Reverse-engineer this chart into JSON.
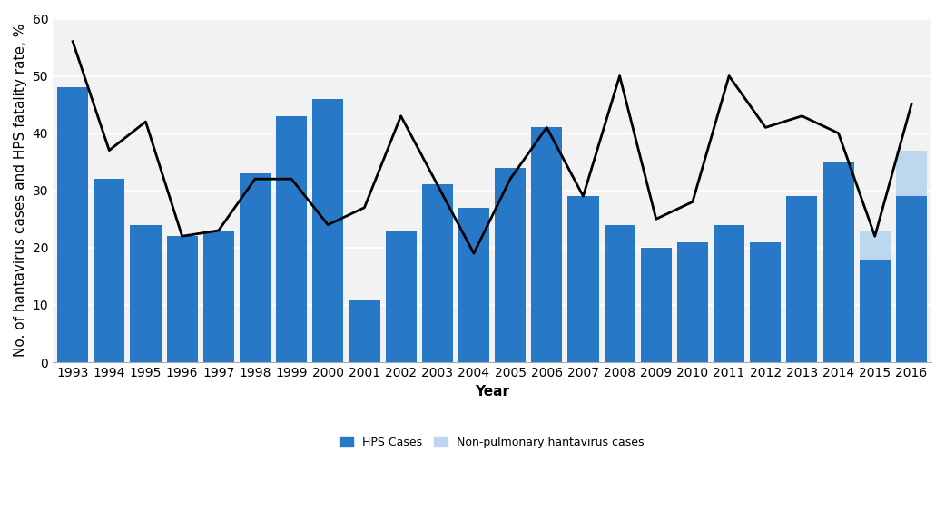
{
  "years": [
    1993,
    1994,
    1995,
    1996,
    1997,
    1998,
    1999,
    2000,
    2001,
    2002,
    2003,
    2004,
    2005,
    2006,
    2007,
    2008,
    2009,
    2010,
    2011,
    2012,
    2013,
    2014,
    2015,
    2016
  ],
  "hps_cases": [
    48,
    32,
    24,
    22,
    23,
    33,
    43,
    46,
    11,
    23,
    31,
    27,
    34,
    41,
    29,
    24,
    20,
    21,
    24,
    21,
    29,
    35,
    18,
    29
  ],
  "non_pulmonary": [
    0,
    0,
    0,
    0,
    0,
    0,
    0,
    0,
    0,
    0,
    0,
    0,
    0,
    0,
    0,
    0,
    0,
    0,
    0,
    0,
    0,
    0,
    5,
    8
  ],
  "fatality_rate": [
    56,
    37,
    42,
    22,
    23,
    32,
    32,
    24,
    27,
    43,
    31,
    19,
    32,
    41,
    29,
    50,
    25,
    28,
    50,
    41,
    43,
    40,
    22,
    45
  ],
  "bar_color_blue": "#2878C8",
  "bar_color_light": "#BDD7EE",
  "line_color": "#000000",
  "ylabel": "No. of hantavirus cases and HPS fatality rate, %",
  "xlabel": "Year",
  "ylim": [
    0,
    60
  ],
  "yticks": [
    0,
    10,
    20,
    30,
    40,
    50,
    60
  ],
  "grid_color": "#FFFFFF",
  "plot_bg_color": "#F2F2F2",
  "background_color": "#FFFFFF",
  "legend_hps": "HPS Cases",
  "legend_non_pulmonary": "Non-pulmonary hantavirus cases",
  "label_fontsize": 11,
  "tick_fontsize": 10,
  "bar_width": 0.85
}
